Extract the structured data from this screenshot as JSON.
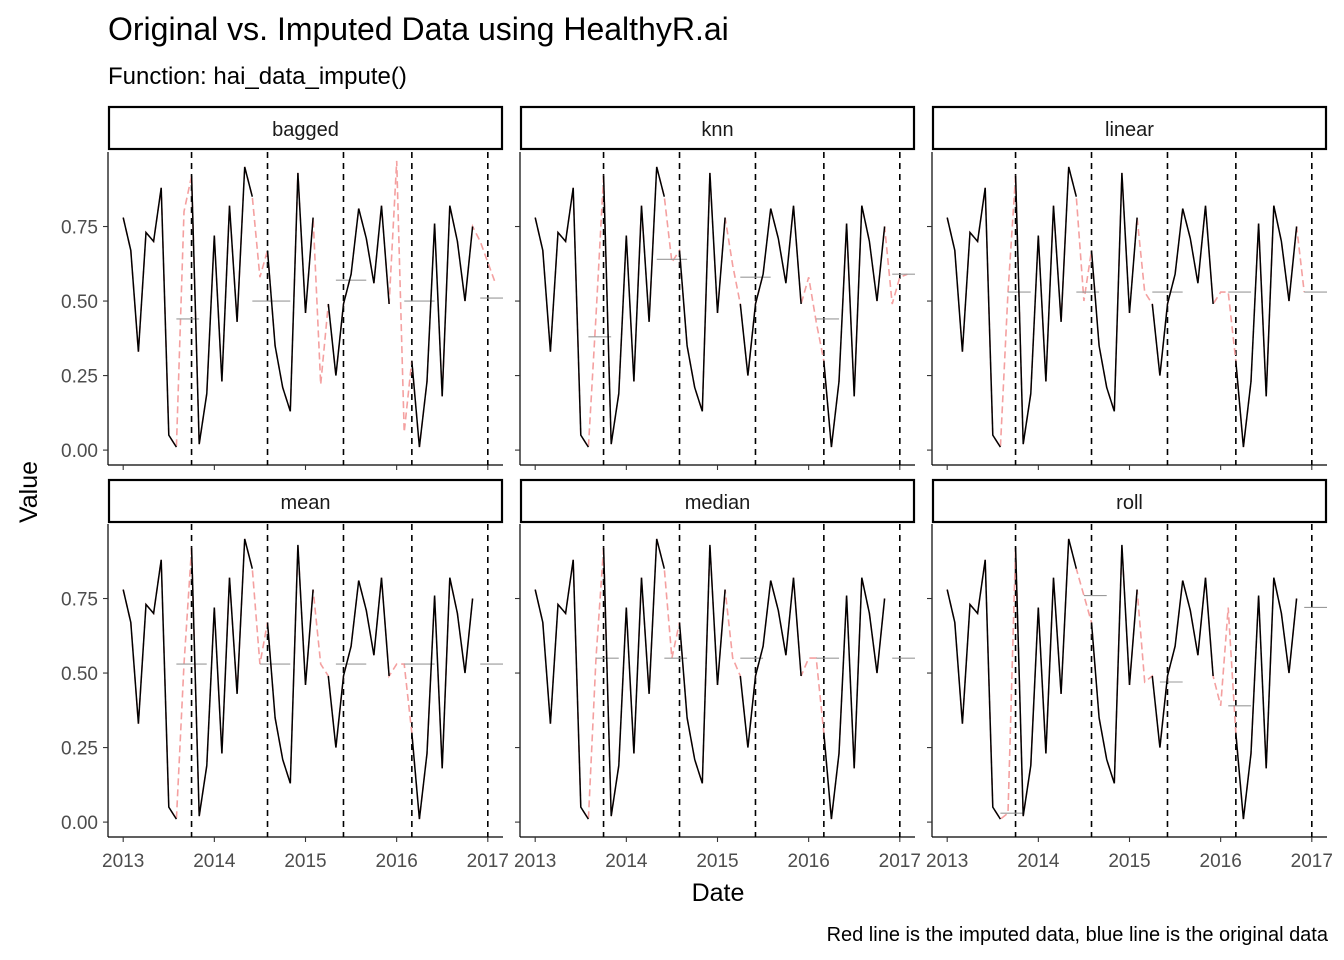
{
  "title": "Original vs. Imputed Data using HealthyR.ai",
  "subtitle": "Function: hai_data_impute()",
  "caption": "Red line is the imputed data, blue line is the original data",
  "colors": {
    "original": "#000000",
    "imputed": "#f4a0a0",
    "mean_line": "#9a9a9a",
    "vline": "#000000",
    "strip_border": "#000000"
  },
  "chart_data": {
    "type": "line",
    "xlabel": "Date",
    "ylabel": "Value",
    "xlim": [
      "2012-11-01",
      "2017-03-01"
    ],
    "ylim": [
      -0.05,
      1.0
    ],
    "x_ticks": [
      "2013",
      "2014",
      "2015",
      "2016",
      "2017"
    ],
    "y_ticks": [
      "0.00",
      "0.25",
      "0.50",
      "0.75"
    ],
    "y_tick_values": [
      0,
      0.25,
      0.5,
      0.75
    ],
    "grid": false,
    "dates": [
      "2013-01",
      "2013-02",
      "2013-03",
      "2013-04",
      "2013-05",
      "2013-06",
      "2013-07",
      "2013-08",
      "2013-09",
      "2013-10",
      "2013-11",
      "2013-12",
      "2014-01",
      "2014-02",
      "2014-03",
      "2014-04",
      "2014-05",
      "2014-06",
      "2014-07",
      "2014-08",
      "2014-09",
      "2014-10",
      "2014-11",
      "2014-12",
      "2015-01",
      "2015-02",
      "2015-03",
      "2015-04",
      "2015-05",
      "2015-06",
      "2015-07",
      "2015-08",
      "2015-09",
      "2015-10",
      "2015-11",
      "2015-12",
      "2016-01",
      "2016-02",
      "2016-03",
      "2016-04",
      "2016-05",
      "2016-06",
      "2016-07",
      "2016-08",
      "2016-09",
      "2016-10",
      "2016-11",
      "2016-12",
      "2017-01",
      "2017-02"
    ],
    "original_values": [
      0.78,
      0.67,
      0.33,
      0.73,
      0.7,
      0.88,
      0.05,
      0.01,
      null,
      0.92,
      0.02,
      0.19,
      0.72,
      0.23,
      0.82,
      0.43,
      0.95,
      0.85,
      null,
      0.67,
      0.35,
      0.21,
      0.13,
      0.93,
      0.46,
      0.78,
      null,
      0.49,
      0.25,
      0.49,
      0.59,
      0.81,
      0.71,
      0.56,
      0.82,
      0.49,
      null,
      null,
      0.3,
      0.01,
      0.23,
      0.76,
      0.18,
      0.82,
      0.7,
      0.5,
      0.75,
      null,
      null,
      null
    ],
    "vline_dates": [
      "2013-10",
      "2014-08",
      "2015-06",
      "2016-03",
      "2017-01"
    ],
    "panels": [
      {
        "name": "bagged",
        "imputed_values": [
          0.8,
          0.58,
          0.22,
          0.97,
          0.06,
          0.7,
          0.63,
          0.56,
          0.53,
          0.52,
          0.45,
          0.53
        ],
        "mean_segments": [
          {
            "from": "2013-08",
            "to": "2013-11",
            "value": 0.44
          },
          {
            "from": "2014-06",
            "to": "2014-11",
            "value": 0.5
          },
          {
            "from": "2015-05",
            "to": "2015-09",
            "value": 0.57
          },
          {
            "from": "2016-02",
            "to": "2016-06",
            "value": 0.5
          },
          {
            "from": "2016-12",
            "to": "2017-04",
            "value": 0.51
          }
        ]
      },
      {
        "name": "knn",
        "imputed_values": [
          0.45,
          0.63,
          0.62,
          0.58,
          0.43,
          0.49,
          0.58,
          0.59
        ],
        "mean_segments": [
          {
            "from": "2013-08",
            "to": "2013-11",
            "value": 0.38
          },
          {
            "from": "2014-05",
            "to": "2014-09",
            "value": 0.64
          },
          {
            "from": "2015-04",
            "to": "2015-08",
            "value": 0.58
          },
          {
            "from": "2016-02",
            "to": "2016-05",
            "value": 0.44
          },
          {
            "from": "2016-12",
            "to": "2017-04",
            "value": 0.59
          }
        ]
      },
      {
        "name": "linear",
        "imputed_values": [
          0.53,
          0.5,
          0.53,
          0.53,
          0.53,
          0.53
        ],
        "mean_segments": [
          {
            "from": "2013-09",
            "to": "2013-12",
            "value": 0.53
          },
          {
            "from": "2014-06",
            "to": "2014-09",
            "value": 0.53
          },
          {
            "from": "2015-04",
            "to": "2015-08",
            "value": 0.53
          },
          {
            "from": "2016-02",
            "to": "2016-05",
            "value": 0.53
          },
          {
            "from": "2016-12",
            "to": "2017-04",
            "value": 0.53
          }
        ]
      },
      {
        "name": "mean",
        "imputed_values": [
          0.53,
          0.53,
          0.53,
          0.53,
          0.53
        ],
        "mean_segments": [
          {
            "from": "2013-08",
            "to": "2013-12",
            "value": 0.53
          },
          {
            "from": "2014-07",
            "to": "2014-11",
            "value": 0.53
          },
          {
            "from": "2015-05",
            "to": "2015-09",
            "value": 0.53
          },
          {
            "from": "2016-02",
            "to": "2016-06",
            "value": 0.53
          },
          {
            "from": "2016-12",
            "to": "2017-04",
            "value": 0.53
          }
        ]
      },
      {
        "name": "median",
        "imputed_values": [
          0.55,
          0.55,
          0.55,
          0.55,
          0.55
        ],
        "mean_segments": [
          {
            "from": "2013-09",
            "to": "2013-12",
            "value": 0.55
          },
          {
            "from": "2014-06",
            "to": "2014-09",
            "value": 0.55
          },
          {
            "from": "2015-04",
            "to": "2015-07",
            "value": 0.55
          },
          {
            "from": "2016-02",
            "to": "2016-05",
            "value": 0.55
          },
          {
            "from": "2016-12",
            "to": "2017-04",
            "value": 0.55
          }
        ]
      },
      {
        "name": "roll",
        "imputed_values": [
          0.03,
          0.76,
          0.47,
          0.39,
          0.72
        ],
        "mean_segments": [
          {
            "from": "2013-08",
            "to": "2013-11",
            "value": 0.03
          },
          {
            "from": "2014-07",
            "to": "2014-10",
            "value": 0.76
          },
          {
            "from": "2015-05",
            "to": "2015-08",
            "value": 0.47
          },
          {
            "from": "2016-02",
            "to": "2016-05",
            "value": 0.39
          },
          {
            "from": "2016-12",
            "to": "2017-04",
            "value": 0.72
          }
        ]
      }
    ]
  }
}
